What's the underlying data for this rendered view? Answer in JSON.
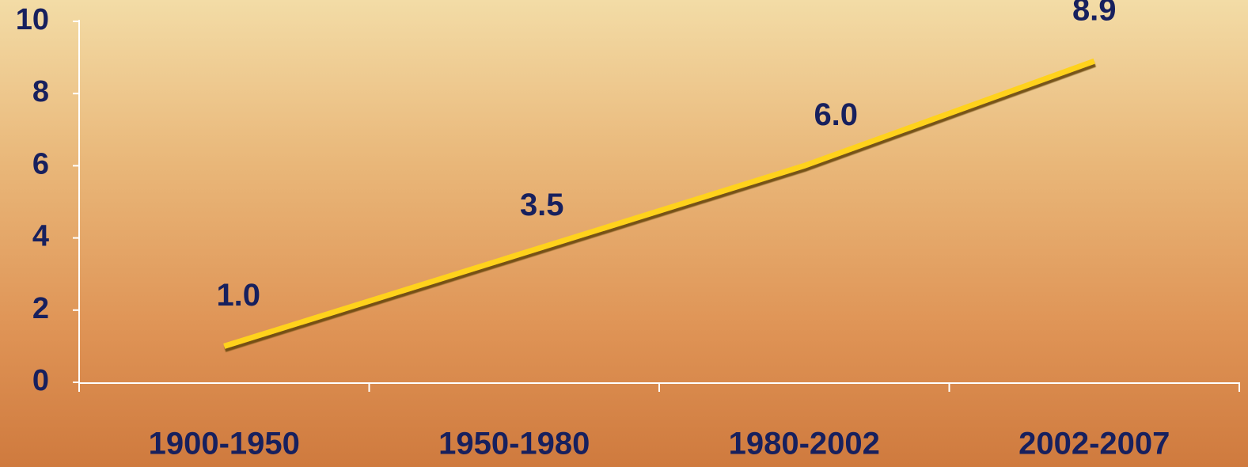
{
  "chart_data": {
    "type": "line",
    "categories": [
      "1900-1950",
      "1950-1980",
      "1980-2002",
      "2002-2007"
    ],
    "values": [
      1.0,
      3.5,
      6.0,
      8.9
    ],
    "value_labels": [
      "1.0",
      "3.5",
      "6.0",
      "8.9"
    ],
    "color": "#ffd21f",
    "ylim": [
      0,
      10
    ],
    "yticks": [
      0,
      2,
      4,
      6,
      8,
      10
    ]
  }
}
